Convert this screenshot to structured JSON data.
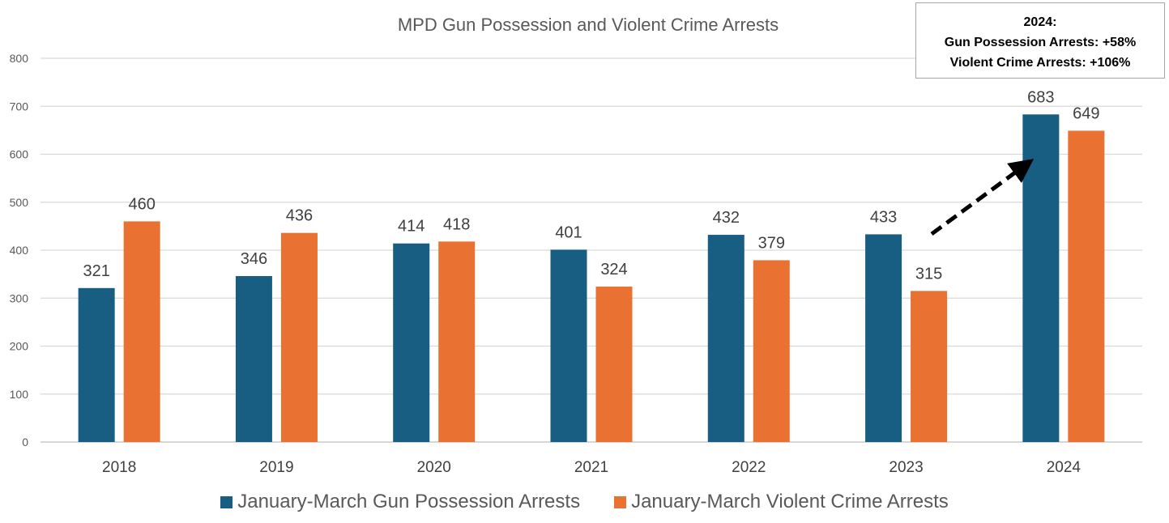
{
  "chart_data": {
    "type": "bar",
    "title": "MPD Gun Possession and Violent Crime Arrests",
    "categories": [
      "2018",
      "2019",
      "2020",
      "2021",
      "2022",
      "2023",
      "2024"
    ],
    "series": [
      {
        "name": "January-March Gun Possession Arrests",
        "color": "#175E82",
        "values": [
          321,
          346,
          414,
          401,
          432,
          433,
          683
        ]
      },
      {
        "name": "January-March Violent Crime Arrests",
        "color": "#E97132",
        "values": [
          460,
          436,
          418,
          324,
          379,
          315,
          649
        ]
      }
    ],
    "ylim": [
      0,
      800
    ],
    "yticks": [
      0,
      100,
      200,
      300,
      400,
      500,
      600,
      700,
      800
    ],
    "grid": true,
    "legend_position": "bottom",
    "data_labels": true,
    "annotation": {
      "lines": [
        "2024:",
        "Gun Possession Arrests: +58%",
        "Violent Crime Arrests: +106%"
      ],
      "arrow": "dashed arrow from 2023 toward 2024"
    }
  }
}
